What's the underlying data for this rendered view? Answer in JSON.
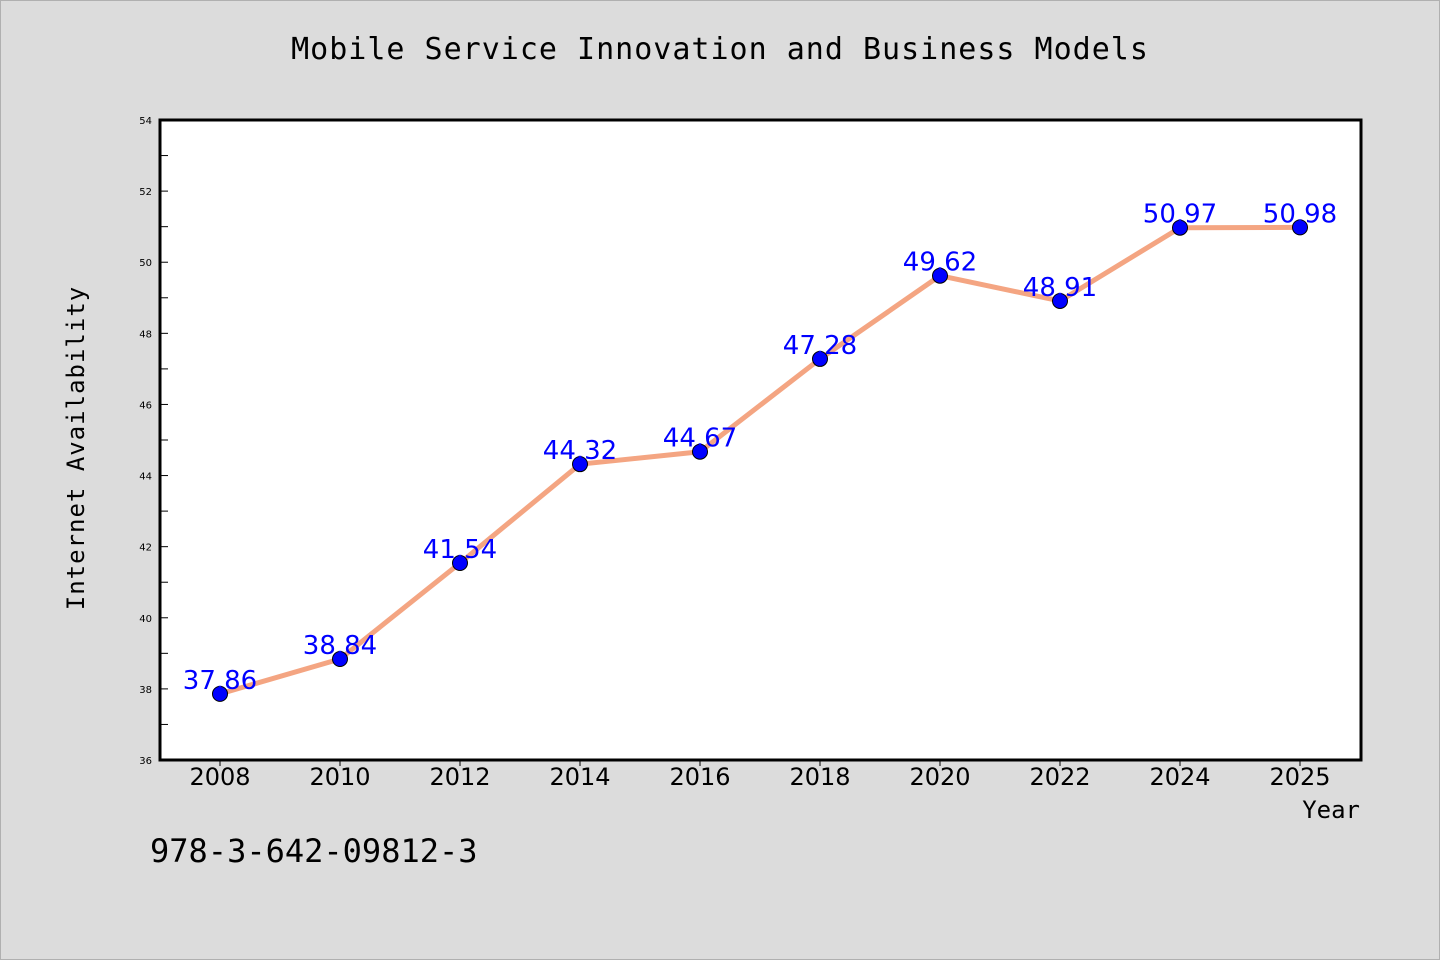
{
  "chart_data": {
    "type": "line",
    "title": "Mobile Service Innovation and Business Models",
    "xlabel": "Year",
    "ylabel": "Internet Availability",
    "categories": [
      "2008",
      "2010",
      "2012",
      "2014",
      "2016",
      "2018",
      "2020",
      "2022",
      "2024",
      "2025"
    ],
    "values": [
      37.86,
      38.84,
      41.54,
      44.32,
      44.67,
      47.28,
      49.62,
      48.91,
      50.97,
      50.98
    ],
    "data_labels": [
      "37.86",
      "38.84",
      "41.54",
      "44.32",
      "44.67",
      "47.28",
      "49.62",
      "48.91",
      "50.97",
      "50.98"
    ],
    "ylim": [
      36,
      54
    ],
    "yticks": [
      "36",
      "38",
      "40",
      "42",
      "44",
      "46",
      "48",
      "50",
      "52",
      "54"
    ],
    "grid": false,
    "line_color": "#f4a582",
    "marker_color": "#0000ff",
    "label_color": "#0000ff",
    "background_color": "#dcdcdc",
    "plot_background_color": "#ffffff"
  },
  "footer": {
    "isbn": "978-3-642-09812-3"
  }
}
